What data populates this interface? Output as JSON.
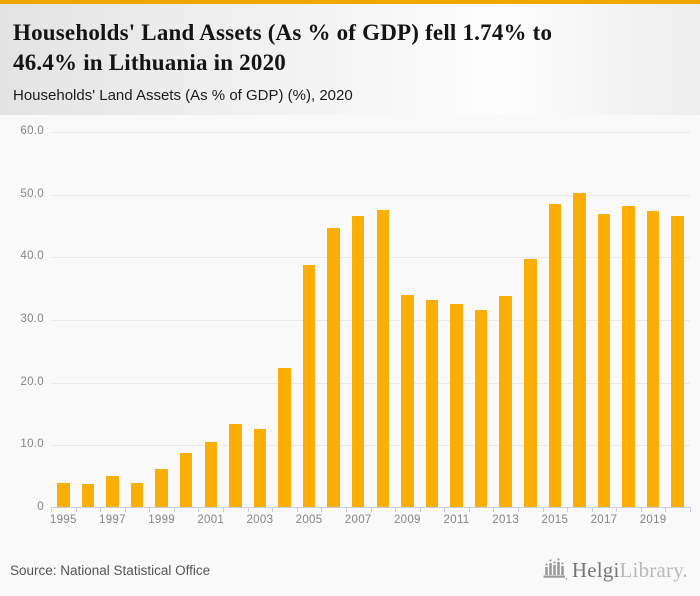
{
  "header": {
    "title_line1": "Households' Land Assets (As % of GDP) fell 1.74% to",
    "title_line2": "46.4% in Lithuania in 2020",
    "subtitle": "Households' Land Assets (As % of GDP) (%), 2020",
    "accent_color": "#F0A800"
  },
  "chart_data": {
    "type": "bar",
    "title": "Households' Land Assets (As % of GDP) (%), 2020",
    "xlabel": "",
    "ylabel": "",
    "categories": [
      1995,
      1996,
      1997,
      1998,
      1999,
      2000,
      2001,
      2002,
      2003,
      2004,
      2005,
      2006,
      2007,
      2008,
      2009,
      2010,
      2011,
      2012,
      2013,
      2014,
      2015,
      2016,
      2017,
      2018,
      2019,
      2020
    ],
    "values": [
      3.9,
      3.6,
      4.9,
      3.8,
      6.1,
      8.6,
      10.4,
      13.3,
      12.5,
      22.2,
      38.6,
      44.5,
      46.4,
      47.4,
      33.8,
      33.1,
      32.4,
      31.4,
      33.6,
      39.6,
      48.3,
      50.1,
      46.7,
      48.1,
      47.2,
      46.4
    ],
    "ylim": [
      0,
      63
    ],
    "grid": true,
    "legend_position": "none",
    "yticks": [
      {
        "value": 0,
        "label": "0"
      },
      {
        "value": 10,
        "label": "10.0"
      },
      {
        "value": 20,
        "label": "20.0"
      },
      {
        "value": 30,
        "label": "30.0"
      },
      {
        "value": 40,
        "label": "40.0"
      },
      {
        "value": 50,
        "label": "50.0"
      },
      {
        "value": 60,
        "label": "60.0"
      }
    ],
    "xtick_labels": [
      "1995",
      "1997",
      "1999",
      "2001",
      "2003",
      "2005",
      "2007",
      "2009",
      "2011",
      "2013",
      "2015",
      "2017",
      "2019"
    ],
    "bar_color": "#FAAE06",
    "grid_color": "#e9e9e9",
    "axis_color": "#c5cfe0"
  },
  "footer": {
    "source": "Source: National Statistical Office",
    "logo": {
      "brand_primary": "Helgi",
      "brand_secondary": "Library.",
      "icon": "bar-chart-logo-icon"
    }
  }
}
